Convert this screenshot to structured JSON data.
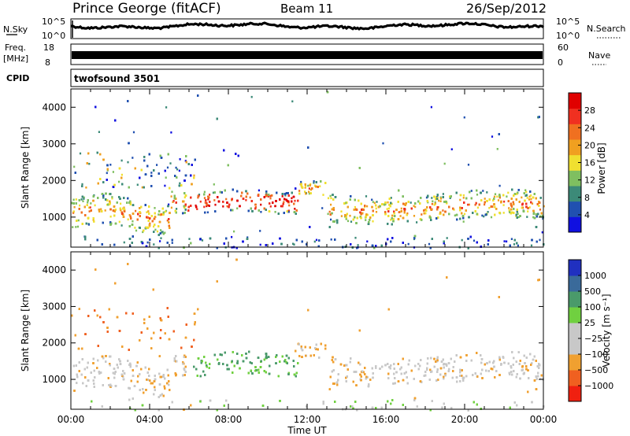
{
  "header": {
    "station": "Prince George (fitACF)",
    "beam": "Beam 11",
    "date": "26/Sep/2012"
  },
  "top_panels": {
    "nsky_label": "N.Sky",
    "nsky_scale_top": "10^5",
    "nsky_scale_bottom": "10^0",
    "nsearch_label": "N.Search",
    "nsearch_right_top": "10^5",
    "nsearch_right_bottom": "10^0",
    "freq_label_1": "Freq.",
    "freq_label_2": "[MHz]",
    "freq_top": "18",
    "freq_bottom": "8",
    "nave_label": "Nave",
    "nave_top": "60",
    "nave_bottom": "0",
    "cpid_label": "CPID",
    "cpid_value": "twofsound 3501"
  },
  "chart_data": [
    {
      "type": "heatmap",
      "title": "",
      "xlabel": "Time UT",
      "ylabel": "Slant Range [km]",
      "x_ticks": [
        "00:00",
        "04:00",
        "08:00",
        "12:00",
        "16:00",
        "20:00",
        "00:00"
      ],
      "y_ticks": [
        1000,
        2000,
        3000,
        4000
      ],
      "xlim": [
        0,
        24
      ],
      "ylim": [
        180,
        4500
      ],
      "colorbar": {
        "label": "Power [dB]",
        "ticks": [
          4,
          8,
          12,
          16,
          20,
          24,
          28
        ],
        "range": [
          0,
          32
        ],
        "colors": [
          "#1010e0",
          "#2050b0",
          "#3c8a78",
          "#7fbf60",
          "#f0e030",
          "#f0a020",
          "#f07020",
          "#f03020",
          "#e00000"
        ]
      }
    },
    {
      "type": "heatmap",
      "title": "",
      "xlabel": "Time UT",
      "ylabel": "Slant Range [km]",
      "x_ticks": [
        "00:00",
        "04:00",
        "08:00",
        "12:00",
        "16:00",
        "20:00",
        "00:00"
      ],
      "y_ticks": [
        1000,
        2000,
        3000,
        4000
      ],
      "xlim": [
        0,
        24
      ],
      "ylim": [
        180,
        4500
      ],
      "colorbar": {
        "label": "Velocity [m s⁻¹]",
        "ticks": [
          "1000",
          "500",
          "100",
          "25",
          "−25",
          "−100",
          "−500",
          "−1000"
        ],
        "colors": [
          "#2030c0",
          "#3a6a9a",
          "#4a9a6a",
          "#70d040",
          "#c8c8c8",
          "#c8c8c8",
          "#f0a030",
          "#f06020",
          "#f02010"
        ]
      }
    }
  ]
}
